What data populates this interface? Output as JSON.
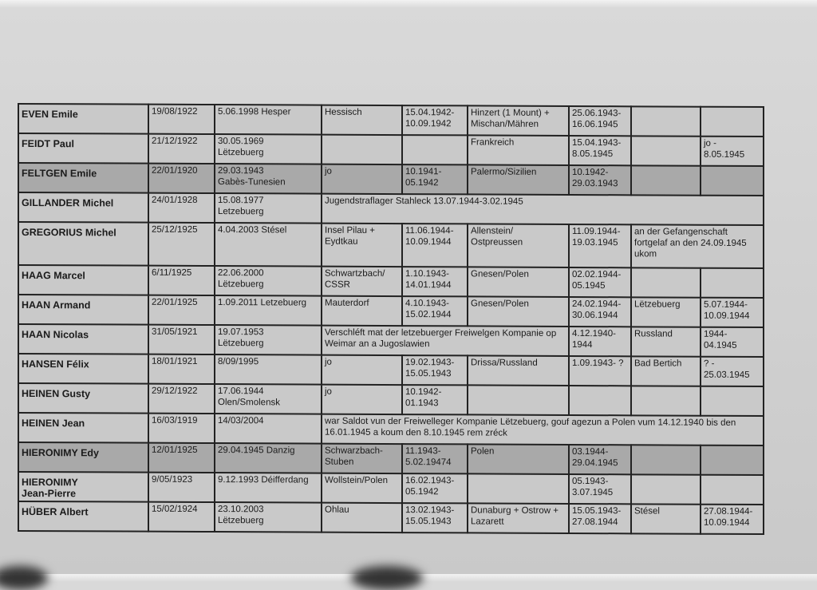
{
  "table": {
    "rows": [
      {
        "cells": [
          "EVEN Emile",
          "19/08/1922",
          "5.06.1998 Hesper",
          "Hessisch",
          "15.04.1942-\n10.09.1942",
          "Hinzert (1 Mount) +\nMischan/Mähren",
          "25.06.1943-\n16.06.1945",
          "",
          ""
        ]
      },
      {
        "cells": [
          "FEIDT Paul",
          "21/12/1922",
          "30.05.1969\nLëtzebuerg",
          "",
          "",
          "Frankreich",
          "15.04.1943-\n8.05.1945",
          "",
          "jo -\n8.05.1945"
        ]
      },
      {
        "shaded": true,
        "cells": [
          "FELTGEN Emile",
          "22/01/1920",
          "29.03.1943\nGabès-Tunesien",
          "jo",
          "10.1941-\n05.1942",
          "Palermo/Sizilien",
          "10.1942-\n29.03.1943",
          "",
          ""
        ]
      },
      {
        "cells": [
          "GILLANDER Michel",
          "24/01/1928",
          "15.08.1977\nLetzebuerg",
          "Jugendstraflager Stahleck 13.07.1944-3.02.1945",
          null,
          null,
          null,
          null,
          null
        ]
      },
      {
        "tall": true,
        "cells": [
          "GREGORIUS Michel",
          "25/12/1925",
          "4.04.2003 Stésel",
          "Insel Pilau +\nEydtkau",
          "11.06.1944-\n10.09.1944",
          "Allenstein/\nOstpreussen",
          "11.09.1944-\n19.03.1945",
          "an der Gefangenschaft fortgelaf an den 24.09.1945 ukom",
          null
        ]
      },
      {
        "cells": [
          "HAAG Marcel",
          "6/11/1925",
          "22.06.2000\nLëtzebuerg",
          "Schwartzbach/\nCSSR",
          "1.10.1943-\n14.01.1944",
          "Gnesen/Polen",
          "02.02.1944-\n05.1945",
          "",
          ""
        ]
      },
      {
        "cells": [
          "HAAN Armand",
          "22/01/1925",
          "1.09.2011 Letzebuerg",
          "Mauterdorf",
          "4.10.1943-\n15.02.1944",
          "Gnesen/Polen",
          "24.02.1944-\n30.06.1944",
          "Lëtzebuerg",
          "5.07.1944-\n10.09.1944"
        ]
      },
      {
        "cells": [
          "HAAN Nicolas",
          "31/05/1921",
          "19.07.1953\nLëtzebuerg",
          "Verschléft mat der letzebuerger Freiwelgen Kompanie op Weimar an a Jugoslawien",
          null,
          null,
          "4.12.1940-\n1944",
          "Russland",
          "1944-\n04.1945"
        ]
      },
      {
        "cells": [
          "HANSEN Félix",
          "18/01/1921",
          "8/09/1995",
          "jo",
          "19.02.1943-\n15.05.1943",
          "Drissa/Russland",
          "1.09.1943- ?",
          "Bad Bertich",
          "? -\n25.03.1945"
        ]
      },
      {
        "cells": [
          "HEINEN Gusty",
          "29/12/1922",
          "17.06.1944\nOlen/Smolensk",
          "jo",
          "10.1942-\n01.1943",
          "",
          "",
          "",
          ""
        ]
      },
      {
        "cells": [
          "HEINEN Jean",
          "16/03/1919",
          "14/03/2004",
          "war Saldot vun der Freiwelleger Kompanie Lëtzebuerg, gouf agezun a Polen vum 14.12.1940 bis den 16.01.1945 a koum den 8.10.1945 rem zréck",
          null,
          null,
          null,
          null,
          null
        ]
      },
      {
        "shaded": true,
        "cells": [
          "HIERONIMY Edy",
          "12/01/1925",
          "29.04.1945 Danzig",
          "Schwarzbach-\nStuben",
          "11.1943-\n5.02.19474",
          "Polen",
          "03.1944-\n29.04.1945",
          "",
          ""
        ]
      },
      {
        "cells": [
          "HIERONIMY\nJean-Pierre",
          "9/05/1923",
          "9.12.1993 Déifferdang",
          "Wollstein/Polen",
          "16.02.1943-\n05.1942",
          "",
          "05.1943-\n3.07.1945",
          "",
          ""
        ]
      },
      {
        "cells": [
          "HÜBER Albert",
          "15/02/1924",
          "23.10.2003\nLëtzebuerg",
          "Ohlau",
          "13.02.1943-\n15.05.1943",
          "Dunaburg + Ostrow +\nLazarett",
          "15.05.1943-\n27.08.1944",
          "Stésel",
          "27.08.1944-\n10.09.1944"
        ]
      }
    ]
  }
}
